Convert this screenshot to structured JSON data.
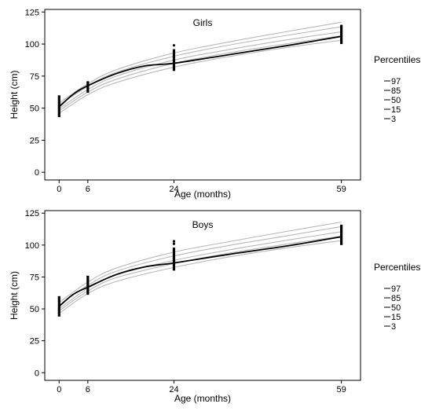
{
  "chart_data": [
    {
      "type": "line",
      "title": "Girls",
      "xlabel": "Age (months)",
      "ylabel": "Height (cm)",
      "xticks": [
        0,
        6,
        24,
        59
      ],
      "yticks": [
        0,
        25,
        50,
        75,
        100,
        125
      ],
      "xlim": [
        -3,
        63
      ],
      "ylim": [
        -6,
        127
      ],
      "grid": false,
      "legend": {
        "title": "Percentiles",
        "position": "right",
        "entries": [
          "97",
          "85",
          "50",
          "15",
          "3"
        ]
      },
      "percentile_curves": [
        {
          "name": "97",
          "x": [
            0,
            6,
            12,
            24,
            36,
            48,
            59
          ],
          "values": [
            54,
            69,
            80,
            93,
            102,
            110,
            117
          ]
        },
        {
          "name": "85",
          "x": [
            0,
            6,
            12,
            24,
            36,
            48,
            59
          ],
          "values": [
            52.5,
            67,
            78,
            90.5,
            99.5,
            107,
            113.5
          ]
        },
        {
          "name": "50",
          "x": [
            0,
            6,
            12,
            24,
            36,
            48,
            59
          ],
          "values": [
            49.5,
            64.5,
            75,
            87.5,
            96,
            103.5,
            109.5
          ]
        },
        {
          "name": "15",
          "x": [
            0,
            6,
            12,
            24,
            36,
            48,
            59
          ],
          "values": [
            48,
            62.5,
            72.5,
            85,
            93.5,
            100.5,
            106.5
          ]
        },
        {
          "name": "3",
          "x": [
            0,
            6,
            12,
            24,
            36,
            48,
            59
          ],
          "values": [
            46,
            60.5,
            70,
            82,
            90.5,
            97.5,
            103
          ]
        }
      ],
      "mean_curve": {
        "x": [
          0,
          3,
          6,
          12,
          18,
          24,
          36,
          48,
          59
        ],
        "values": [
          51,
          61,
          67.5,
          77,
          83,
          85,
          92,
          99,
          106
        ]
      },
      "observations": [
        {
          "x": 0,
          "min": 43,
          "max": 60
        },
        {
          "x": 6,
          "min": 62,
          "max": 71
        },
        {
          "x": 24,
          "min": 79,
          "max": 96,
          "outliers": [
            99
          ]
        },
        {
          "x": 59,
          "min": 100,
          "max": 115
        }
      ]
    },
    {
      "type": "line",
      "title": "Boys",
      "xlabel": "Age (months)",
      "ylabel": "Height (cm)",
      "xticks": [
        0,
        6,
        24,
        59
      ],
      "yticks": [
        0,
        25,
        50,
        75,
        100,
        125
      ],
      "xlim": [
        -3,
        63
      ],
      "ylim": [
        -6,
        127
      ],
      "grid": false,
      "legend": {
        "title": "Percentiles",
        "position": "right",
        "entries": [
          "97",
          "85",
          "50",
          "15",
          "3"
        ]
      },
      "percentile_curves": [
        {
          "name": "97",
          "x": [
            0,
            6,
            12,
            24,
            36,
            48,
            59
          ],
          "values": [
            55,
            71,
            82,
            94.5,
            103,
            111,
            118
          ]
        },
        {
          "name": "85",
          "x": [
            0,
            6,
            12,
            24,
            36,
            48,
            59
          ],
          "values": [
            53,
            68.5,
            79.5,
            91.5,
            100,
            107.5,
            114.5
          ]
        },
        {
          "name": "50",
          "x": [
            0,
            6,
            12,
            24,
            36,
            48,
            59
          ],
          "values": [
            50,
            66,
            76.5,
            88,
            96.5,
            104,
            110.5
          ]
        },
        {
          "name": "15",
          "x": [
            0,
            6,
            12,
            24,
            36,
            48,
            59
          ],
          "values": [
            48.5,
            64,
            74.5,
            85.5,
            94,
            101,
            107
          ]
        },
        {
          "name": "3",
          "x": [
            0,
            6,
            12,
            24,
            36,
            48,
            59
          ],
          "values": [
            46.5,
            62,
            71.5,
            82.5,
            91,
            98,
            103.5
          ]
        }
      ],
      "mean_curve": {
        "x": [
          0,
          3,
          6,
          12,
          18,
          24,
          36,
          48,
          59
        ],
        "values": [
          52,
          61.5,
          67,
          77,
          83,
          86,
          93,
          99.5,
          106.5
        ]
      },
      "observations": [
        {
          "x": 0,
          "min": 44,
          "max": 60
        },
        {
          "x": 6,
          "min": 61,
          "max": 76
        },
        {
          "x": 24,
          "min": 80,
          "max": 98,
          "outliers": [
            101,
            103
          ]
        },
        {
          "x": 59,
          "min": 100,
          "max": 116
        }
      ]
    }
  ],
  "colors": {
    "percentile_line": "#b8b8b8",
    "mean_line": "#000000",
    "observation": "#000000",
    "axis": "#000000"
  }
}
